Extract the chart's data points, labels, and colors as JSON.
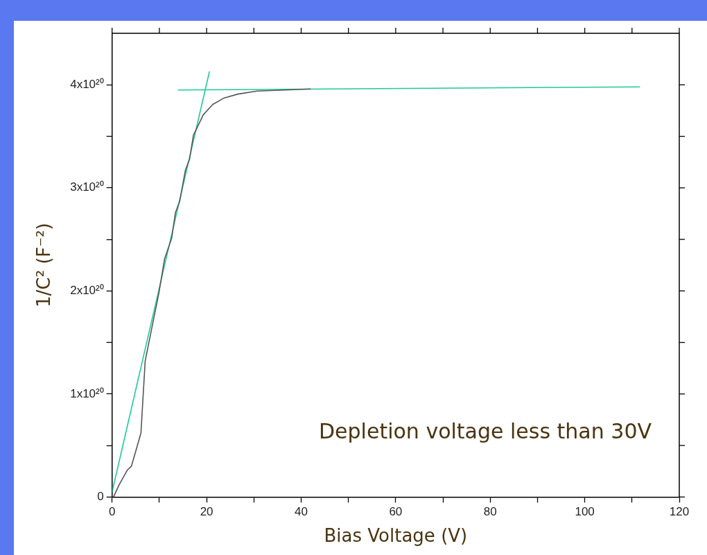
{
  "chart_data": {
    "type": "line",
    "xlabel": "Bias Voltage (V)",
    "ylabel": "1/C² (F⁻²)",
    "annotations": [
      "Depletion voltage less than 30V"
    ],
    "xlim": [
      0,
      120
    ],
    "ylim": [
      0,
      4.5e+20
    ],
    "xticks": [
      0,
      {
        "value": 10,
        "label": null
      },
      20,
      {
        "value": 30,
        "label": null
      },
      40,
      {
        "value": 50,
        "label": null
      },
      60,
      {
        "value": 70,
        "label": null
      },
      80,
      {
        "value": 90,
        "label": null
      },
      100,
      {
        "value": 110,
        "label": null
      },
      120
    ],
    "yticks": [
      {
        "value": 0,
        "label": "0"
      },
      {
        "value": 5e+19,
        "label": null
      },
      {
        "value": 1e+20,
        "label": "1x10²⁰"
      },
      {
        "value": 1.5e+20,
        "label": null
      },
      {
        "value": 2e+20,
        "label": "2x10²⁰"
      },
      {
        "value": 2.5e+20,
        "label": null
      },
      {
        "value": 3e+20,
        "label": "3x10²⁰"
      },
      {
        "value": 3.5e+20,
        "label": null
      },
      {
        "value": 4e+20,
        "label": "4x10²⁰"
      }
    ],
    "grid": false,
    "legend": false,
    "marker": "none",
    "line_style": "solid",
    "series": [
      {
        "color": "#555555",
        "x": [
          0.3,
          1.5,
          3.2,
          4.1,
          6.1,
          7.0,
          8.8,
          9.9,
          11.1,
          12.6,
          13.4,
          14.3,
          15.5,
          16.4,
          17.2,
          19.3,
          21.3,
          23.6,
          26.6,
          30.7,
          36.5,
          42
        ],
        "values": [
          0,
          1.2e+19,
          2.6e+19,
          3e+19,
          6.2e+19,
          1.32e+20,
          1.73e+20,
          1.98e+20,
          2.31e+20,
          2.51e+20,
          2.76e+20,
          2.87e+20,
          3.17e+20,
          3.28e+20,
          3.51e+20,
          3.71e+20,
          3.81e+20,
          3.87e+20,
          3.91e+20,
          3.94e+20,
          3.95e+20,
          3.96e+20
        ]
      },
      {
        "color": "#1fc99a",
        "x": [
          0,
          20.6
        ],
        "values": [
          5e+18,
          4.13e+20
        ]
      },
      {
        "color": "#1fc99a",
        "x": [
          13.9,
          111.7
        ],
        "values": [
          3.95e+20,
          3.98e+20
        ]
      }
    ]
  }
}
